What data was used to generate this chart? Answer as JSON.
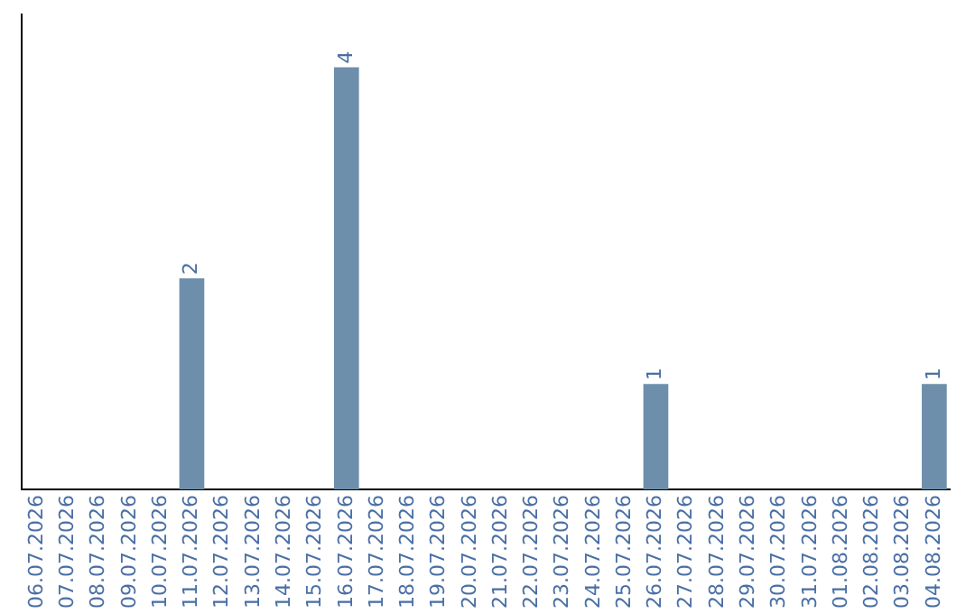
{
  "chart_data": {
    "type": "bar",
    "categories": [
      "06.07.2026",
      "07.07.2026",
      "08.07.2026",
      "09.07.2026",
      "10.07.2026",
      "11.07.2026",
      "12.07.2026",
      "13.07.2026",
      "14.07.2026",
      "15.07.2026",
      "16.07.2026",
      "17.07.2026",
      "18.07.2026",
      "19.07.2026",
      "20.07.2026",
      "21.07.2026",
      "22.07.2026",
      "23.07.2026",
      "24.07.2026",
      "25.07.2026",
      "26.07.2026",
      "27.07.2026",
      "28.07.2026",
      "29.07.2026",
      "30.07.2026",
      "31.07.2026",
      "01.08.2026",
      "02.08.2026",
      "03.08.2026",
      "04.08.2026"
    ],
    "values": [
      0,
      0,
      0,
      0,
      0,
      2,
      0,
      0,
      0,
      0,
      4,
      0,
      0,
      0,
      0,
      0,
      0,
      0,
      0,
      0,
      1,
      0,
      0,
      0,
      0,
      0,
      0,
      0,
      0,
      1
    ],
    "value_labels": [
      null,
      null,
      null,
      null,
      null,
      "2",
      null,
      null,
      null,
      null,
      "4",
      null,
      null,
      null,
      null,
      null,
      null,
      null,
      null,
      null,
      "1",
      null,
      null,
      null,
      null,
      null,
      null,
      null,
      null,
      "1"
    ],
    "color": "#6e8fab",
    "grid": false,
    "legend": false,
    "tick_labels": "x"
  }
}
